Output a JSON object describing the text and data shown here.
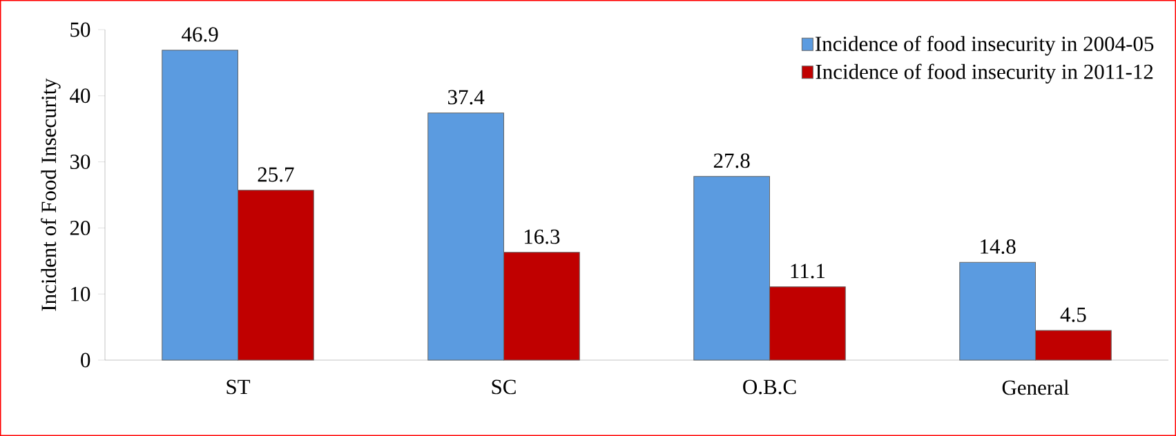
{
  "chart_data": {
    "type": "bar",
    "ylabel": "Incident of Food Insecurity",
    "categories": [
      "ST",
      "SC",
      "O.B.C",
      "General"
    ],
    "series": [
      {
        "name": "Incidence of food insecurity in 2004-05",
        "color": "#5b9be0",
        "values": [
          46.9,
          37.4,
          27.8,
          14.8
        ]
      },
      {
        "name": "Incidence of food insecurity in 2011-12",
        "color": "#c00000",
        "values": [
          25.7,
          16.3,
          11.1,
          4.5
        ]
      }
    ],
    "ylim": [
      0,
      50
    ],
    "yticks": [
      0,
      10,
      20,
      30,
      40,
      50
    ],
    "data_labels": true,
    "legend": "top right",
    "grid": false
  }
}
